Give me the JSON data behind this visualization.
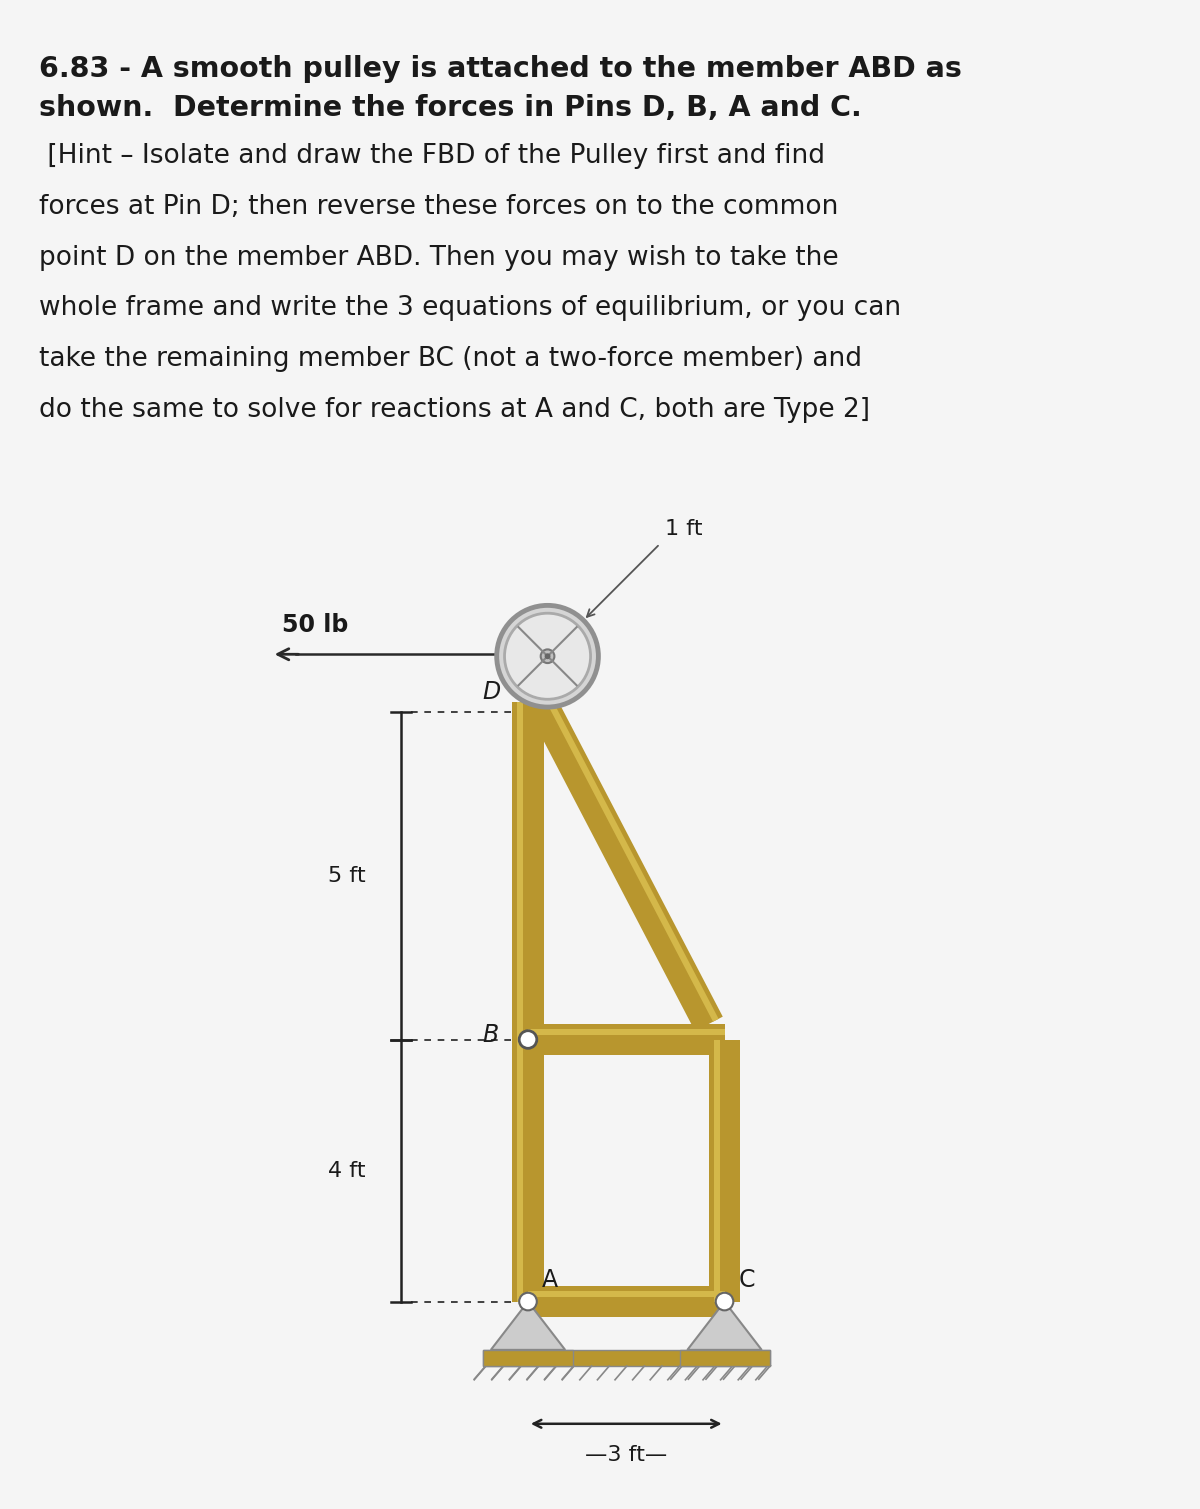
{
  "title_line1": "6.83 - A smooth pulley is attached to the member ABD as",
  "title_line2": "shown.  Determine the forces in Pins D, B, A and C.",
  "hint_line1": " [Hint – Isolate and draw the FBD of the Pulley first and find",
  "hint_line2": "forces at Pin D; then reverse these forces on to the common",
  "hint_line3": "point D on the member ABD. Then you may wish to take the",
  "hint_line4": "whole frame and write the 3 equations of equilibrium, or you can",
  "hint_line5": "take the remaining member BC (not a two-force member) and",
  "hint_line6": "do the same to solve for reactions at A and C, both are Type 2]",
  "force_label": "50 lb",
  "dim_5ft": "5 ft",
  "dim_4ft": "4 ft",
  "dim_3ft": "—3 ft—",
  "dim_1ft": "1 ft",
  "label_D": "D",
  "label_B": "B",
  "label_A": "A",
  "label_C": "C",
  "bg_color": "#f5f5f5",
  "member_color": "#b8962e",
  "member_color_hi": "#d4b84a",
  "pin_support_color": "#cccccc",
  "pulley_rim_color": "#aaaaaa",
  "pulley_face_color": "#d5d5d5",
  "pulley_inner_color": "#e8e8e8",
  "text_color": "#1a1a1a",
  "dim_color": "#222222",
  "arrow_color": "#2a2a2a",
  "ground_fill": "#b8962e",
  "ground_base": "#8a7020"
}
